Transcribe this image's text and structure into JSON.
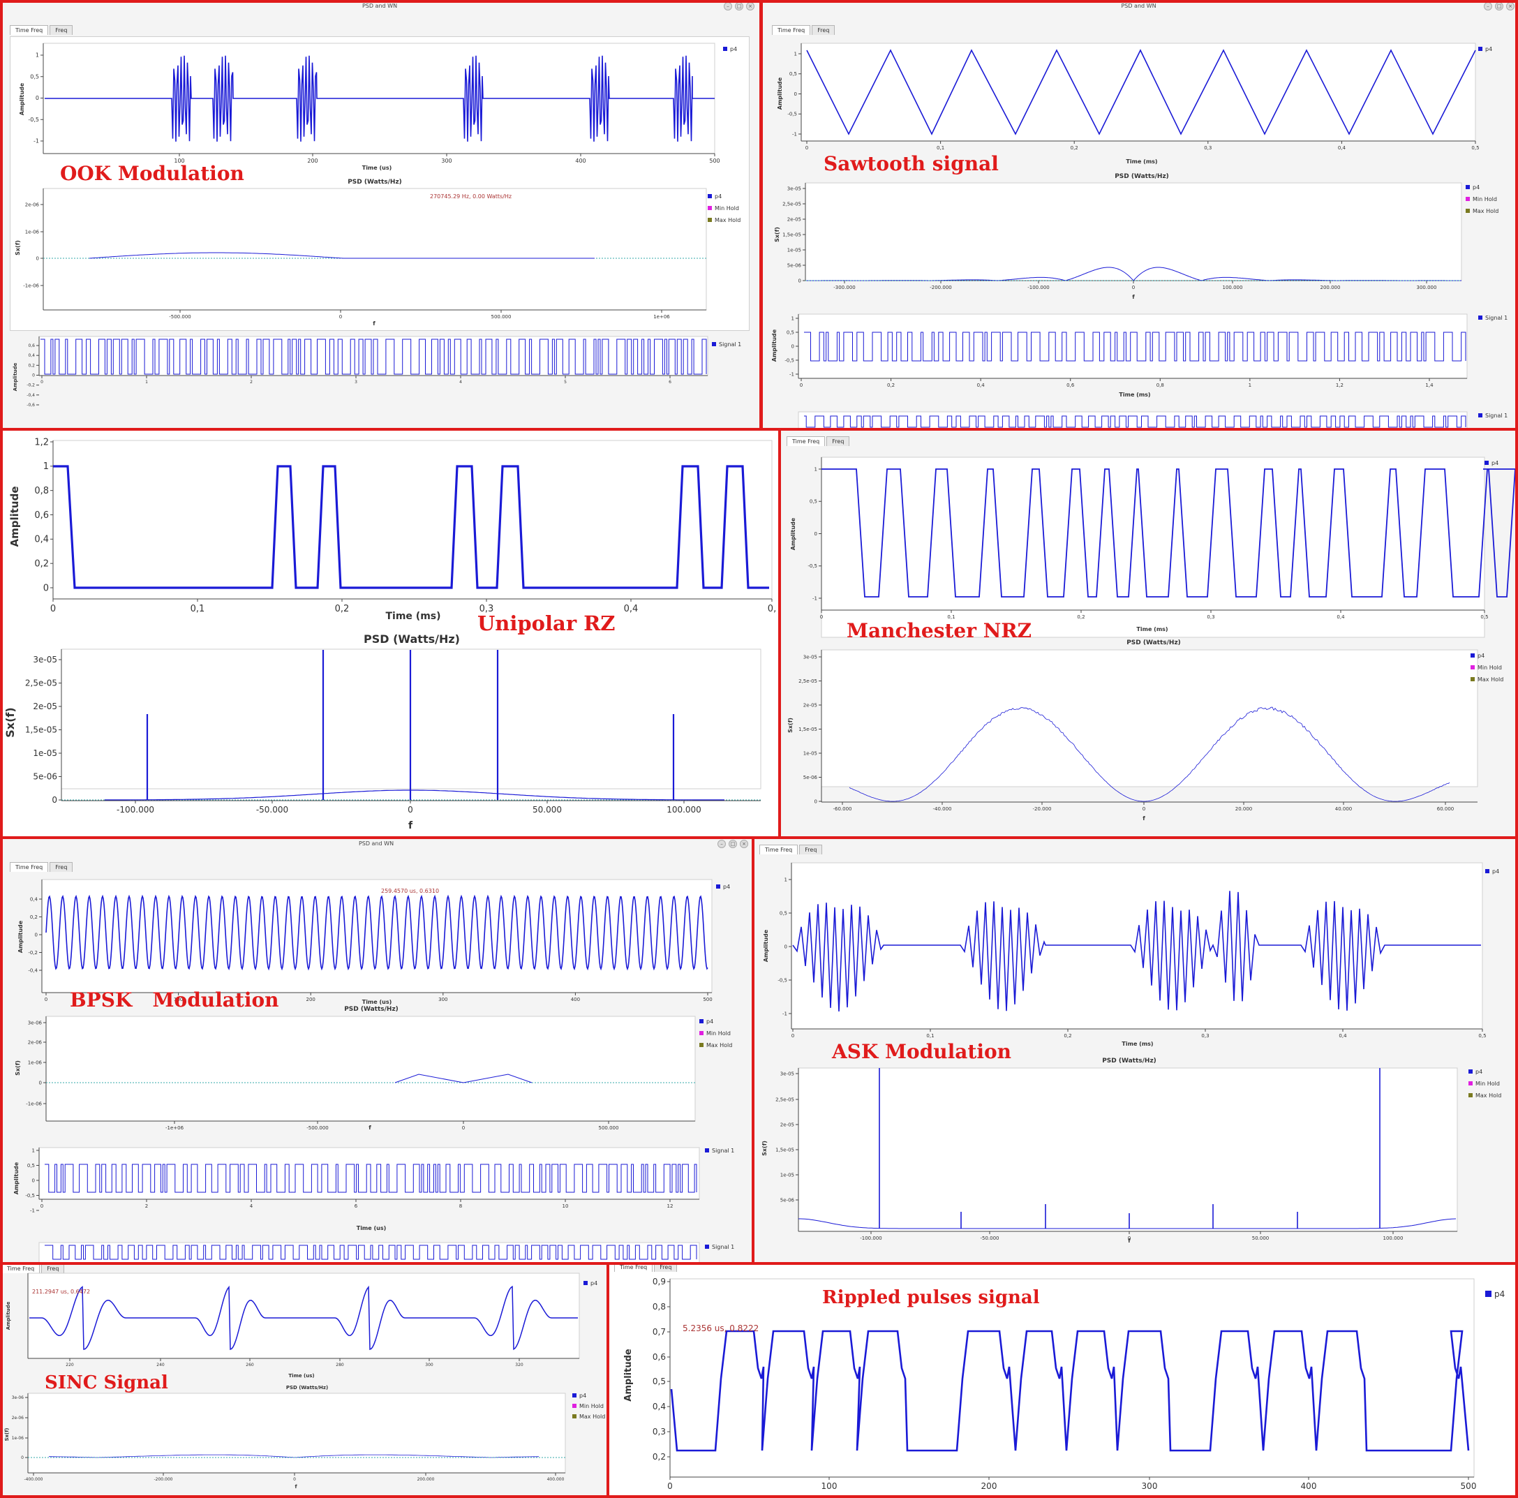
{
  "window_title": "PSD and WN",
  "tabs": {
    "time": "Time Freq",
    "freq": "Freq"
  },
  "legend": {
    "p4": "p4",
    "min_hold": "Min Hold",
    "max_hold": "Max Hold",
    "signal1": "Signal 1"
  },
  "axis": {
    "amplitude": "Amplitude",
    "time_us": "Time (us)",
    "time_ms": "Time (ms)",
    "psd_title": "PSD (Watts/Hz)",
    "sxf": "Sx(f)",
    "f": "f"
  },
  "labels": {
    "ook": "OOK Modulation",
    "sawtooth": "Sawtooth signal",
    "unipolar": "Unipolar RZ",
    "manchester": "Manchester NRZ",
    "bpsk": "BPSK   Modulation",
    "ask": "ASK Modulation",
    "sinc": "SINC Signal",
    "rippled": "Rippled pulses signal"
  },
  "readouts": {
    "ook_psd": "270745.29 Hz, 0.00 Watts/Hz",
    "sinc": "211.2947 us, 0.6472",
    "rippled": "5.2356 us, 0.8222",
    "bpsk": "259.4570 us, 0.6310"
  },
  "ticks": {
    "ook_time_x": [
      "100",
      "200",
      "300",
      "400",
      "500"
    ],
    "ook_time_y": [
      "1",
      "0,5",
      "0",
      "-0,5",
      "-1"
    ],
    "ook_psd_x": [
      "-500.000",
      "0",
      "500.000",
      "1e+06"
    ],
    "ook_psd_y": [
      "2e-06",
      "1e-06",
      "0",
      "-1e-06"
    ],
    "ook_sig_x": [
      "0",
      "1",
      "2",
      "3",
      "4",
      "5",
      "6"
    ],
    "ook_sig_y": [
      "0,6",
      "0,4",
      "0,2",
      "0",
      "-0,2",
      "-0,4",
      "-0,6"
    ],
    "saw_x": [
      "0",
      "0,1",
      "0,2",
      "0,3",
      "0,4",
      "0,5"
    ],
    "saw_y": [
      "1",
      "0,5",
      "0",
      "-0,5",
      "-1"
    ],
    "saw_psd_x": [
      "-300.000",
      "-200.000",
      "-100.000",
      "0",
      "100.000",
      "200.000",
      "300.000"
    ],
    "saw_psd_y": [
      "3e-05",
      "2,5e-05",
      "2e-05",
      "1,5e-05",
      "1e-05",
      "5e-06",
      "0"
    ],
    "saw_sig_x": [
      "0",
      "0,2",
      "0,4",
      "0,6",
      "0,8",
      "1",
      "1,2",
      "1,4"
    ],
    "saw_sig_y": [
      "1",
      "0,5",
      "0",
      "-0,5",
      "-1"
    ],
    "uni_x": [
      "0",
      "0,1",
      "0,2",
      "0,3",
      "0,4",
      "0,"
    ],
    "uni_y": [
      "1,2",
      "1",
      "0,8",
      "0,6",
      "0,4",
      "0,2",
      "0"
    ],
    "uni_psd_x": [
      "-100.000",
      "-50.000",
      "0",
      "50.000",
      "100.000"
    ],
    "uni_psd_y": [
      "3e-05",
      "2,5e-05",
      "2e-05",
      "1,5e-05",
      "1e-05",
      "5e-06",
      "0"
    ],
    "man_x": [
      "0",
      "0,1",
      "0,2",
      "0,3",
      "0,4",
      "0,5"
    ],
    "man_y": [
      "1",
      "0,5",
      "0",
      "-0,5",
      "-1"
    ],
    "man_psd_x": [
      "-60.000",
      "-40.000",
      "-20.000",
      "0",
      "20.000",
      "40.000",
      "60.000"
    ],
    "man_psd_y": [
      "3e-05",
      "2,5e-05",
      "2e-05",
      "1,5e-05",
      "1e-05",
      "5e-06",
      "0"
    ],
    "bpsk_x": [
      "0",
      "100",
      "200",
      "300",
      "400",
      "500"
    ],
    "bpsk_y": [
      "0,4",
      "0,2",
      "0",
      "-0,2",
      "-0,4"
    ],
    "bpsk_psd_x": [
      "-1e+06",
      "-500.000",
      "0",
      "500.000"
    ],
    "bpsk_psd_y": [
      "3e-06",
      "2e-06",
      "1e-06",
      "0",
      "-1e-06"
    ],
    "bpsk_sig_x": [
      "0",
      "2",
      "4",
      "6",
      "8",
      "10",
      "12"
    ],
    "bpsk_sig_y": [
      "1",
      "0,5",
      "0",
      "-0,5",
      "-1"
    ],
    "ask_x": [
      "0",
      "0,1",
      "0,2",
      "0,3",
      "0,4",
      "0,5"
    ],
    "ask_y": [
      "1",
      "0,5",
      "0",
      "-0,5",
      "-1"
    ],
    "ask_psd_x": [
      "-100.000",
      "-50.000",
      "0",
      "50.000",
      "100.000"
    ],
    "ask_psd_y": [
      "3e-05",
      "2,5e-05",
      "2e-05",
      "1,5e-05",
      "1e-05",
      "5e-06"
    ],
    "sinc_x": [
      "220",
      "240",
      "260",
      "280",
      "300",
      "320"
    ],
    "sinc_psd_x": [
      "-400.000",
      "-200.000",
      "0",
      "200.000",
      "400.000"
    ],
    "sinc_psd_y": [
      "3e-06",
      "2e-06",
      "1e-06",
      "0"
    ],
    "rip_x": [
      "0",
      "100",
      "200",
      "300",
      "400",
      "500"
    ],
    "rip_y": [
      "0,9",
      "0,8",
      "0,7",
      "0,6",
      "0,5",
      "0,4",
      "0,3",
      "0,2"
    ]
  },
  "colors": {
    "trace": "#1a1ad6",
    "frame": "#e01b1b",
    "label": "#e01b1b",
    "min_hold": "#e020e0",
    "max_hold": "#7a7a20"
  }
}
